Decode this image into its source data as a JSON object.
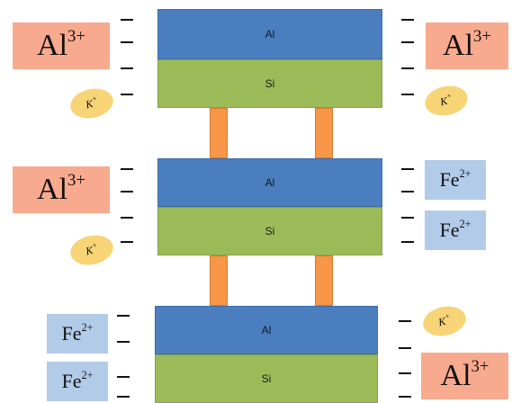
{
  "layers": {
    "al_label": "Al",
    "si_label": "Si"
  },
  "ions": {
    "al_symbol": "Al",
    "al_charge": "3+",
    "fe_symbol": "Fe",
    "fe_charge": "2+",
    "k_symbol": "K",
    "k_charge": "+"
  },
  "colors": {
    "al_layer": "#4a7ebf",
    "si_layer": "#9bbb59",
    "pillar": "#f79646",
    "al_ion": "#f8aa8f",
    "fe_ion": "#b2cbe9",
    "k_ion": "#f7d476"
  }
}
